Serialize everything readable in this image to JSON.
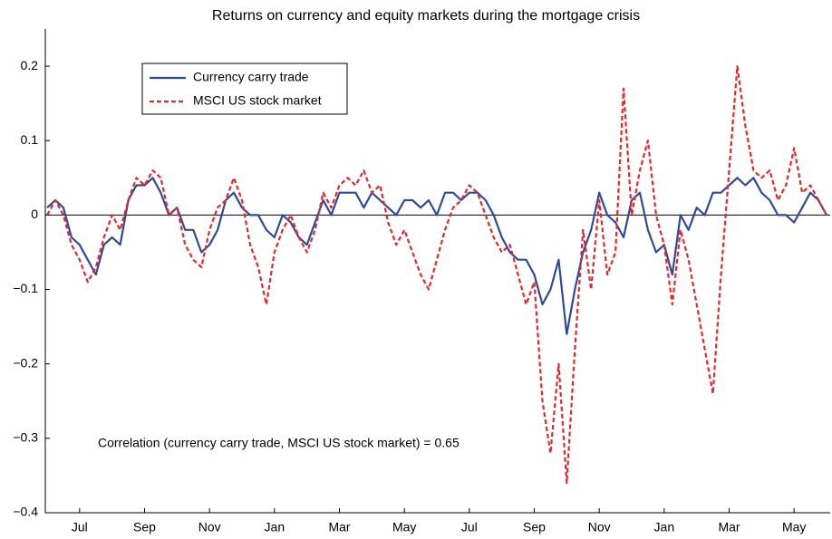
{
  "chart_data": {
    "type": "line",
    "title": "Returns on currency and equity markets during the mortgage crisis",
    "annotation": "Correlation (currency carry trade, MSCI US stock market) = 0.65",
    "categories": [
      null,
      null,
      null,
      null,
      "Jul",
      null,
      null,
      null,
      null,
      null,
      null,
      null,
      "Sep",
      null,
      null,
      null,
      null,
      null,
      null,
      null,
      "Nov",
      null,
      null,
      null,
      null,
      null,
      null,
      null,
      "Jan",
      null,
      null,
      null,
      null,
      null,
      null,
      null,
      "Mar",
      null,
      null,
      null,
      null,
      null,
      null,
      null,
      "May",
      null,
      null,
      null,
      null,
      null,
      null,
      null,
      "Jul",
      null,
      null,
      null,
      null,
      null,
      null,
      null,
      "Sep",
      null,
      null,
      null,
      null,
      null,
      null,
      null,
      "Nov",
      null,
      null,
      null,
      null,
      null,
      null,
      null,
      "Jan",
      null,
      null,
      null,
      null,
      null,
      null,
      null,
      "Mar",
      null,
      null,
      null,
      null,
      null,
      null,
      null,
      "May",
      null,
      null,
      null,
      null
    ],
    "series": [
      {
        "name": "Currency carry trade",
        "color": "#2e4b9b",
        "dash": false,
        "values": [
          0.01,
          0.02,
          0.01,
          -0.03,
          -0.04,
          -0.06,
          -0.08,
          -0.04,
          -0.03,
          -0.04,
          0.02,
          0.04,
          0.04,
          0.05,
          0.03,
          0.0,
          0.01,
          -0.02,
          -0.02,
          -0.05,
          -0.04,
          -0.02,
          0.02,
          0.03,
          0.01,
          0.0,
          0.0,
          -0.02,
          -0.03,
          0.0,
          -0.01,
          -0.03,
          -0.04,
          -0.01,
          0.02,
          0.0,
          0.03,
          0.03,
          0.03,
          0.01,
          0.03,
          0.02,
          0.01,
          0.0,
          0.02,
          0.02,
          0.01,
          0.02,
          0.0,
          0.03,
          0.03,
          0.02,
          0.03,
          0.03,
          0.02,
          0.0,
          -0.03,
          -0.05,
          -0.06,
          -0.06,
          -0.08,
          -0.12,
          -0.1,
          -0.06,
          -0.16,
          -0.1,
          -0.05,
          -0.02,
          0.03,
          0.0,
          -0.01,
          -0.03,
          0.02,
          0.03,
          -0.02,
          -0.05,
          -0.04,
          -0.08,
          0.0,
          -0.02,
          0.01,
          0.0,
          0.03,
          0.03,
          0.04,
          0.05,
          0.04,
          0.05,
          0.03,
          0.02,
          0.0,
          0.0,
          -0.01,
          0.01,
          0.03,
          0.02,
          0.0
        ]
      },
      {
        "name": "MSCI US stock market",
        "color": "#e8262a",
        "dash": true,
        "values": [
          0.0,
          0.02,
          0.0,
          -0.04,
          -0.06,
          -0.09,
          -0.07,
          -0.03,
          0.0,
          -0.02,
          0.02,
          0.05,
          0.04,
          0.06,
          0.05,
          0.0,
          0.01,
          -0.04,
          -0.06,
          -0.07,
          -0.02,
          0.01,
          0.02,
          0.05,
          0.02,
          -0.04,
          -0.07,
          -0.12,
          -0.05,
          -0.02,
          0.0,
          -0.03,
          -0.05,
          -0.02,
          0.03,
          0.01,
          0.04,
          0.05,
          0.04,
          0.06,
          0.03,
          0.04,
          -0.01,
          -0.04,
          -0.02,
          -0.05,
          -0.08,
          -0.1,
          -0.06,
          -0.02,
          0.01,
          0.02,
          0.04,
          0.03,
          0.0,
          -0.03,
          -0.05,
          -0.04,
          -0.08,
          -0.12,
          -0.09,
          -0.25,
          -0.32,
          -0.2,
          -0.36,
          -0.18,
          -0.02,
          -0.1,
          0.02,
          -0.08,
          -0.05,
          0.17,
          0.0,
          0.06,
          0.1,
          0.0,
          -0.04,
          -0.12,
          -0.02,
          -0.06,
          -0.12,
          -0.18,
          -0.24,
          -0.08,
          0.06,
          0.2,
          0.12,
          0.06,
          0.05,
          0.06,
          0.02,
          0.04,
          0.09,
          0.03,
          0.04,
          0.02,
          0.0
        ]
      }
    ],
    "ylim": [
      -0.4,
      0.25
    ],
    "yticks": [
      {
        "value": -0.4,
        "label": "−0.4"
      },
      {
        "value": -0.3,
        "label": "−0.3"
      },
      {
        "value": -0.2,
        "label": "−0.2"
      },
      {
        "value": -0.1,
        "label": "−0.1"
      },
      0,
      0.1,
      0.2
    ],
    "legend": "upper left"
  }
}
